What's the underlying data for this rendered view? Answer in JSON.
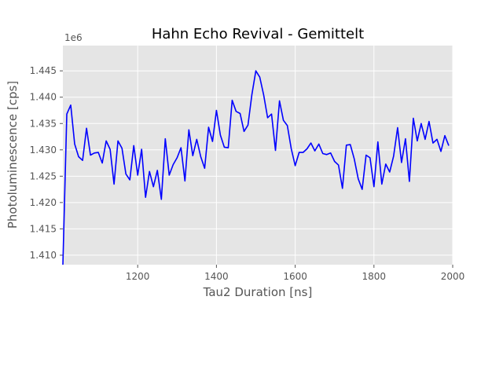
{
  "chart_data": {
    "type": "line",
    "title": "Hahn Echo Revival - Gemittelt",
    "xlabel": "Tau2 Duration [ns]",
    "ylabel": "Photoluminescence [cps]",
    "y_offset_label": "1e6",
    "xlim": [
      1010,
      2000
    ],
    "ylim": [
      1.4082,
      1.4498
    ],
    "x_ticks": [
      1200,
      1400,
      1600,
      1800,
      2000
    ],
    "x_tick_labels": [
      "1200",
      "1400",
      "1600",
      "1800",
      "2000"
    ],
    "y_ticks": [
      1.41,
      1.415,
      1.42,
      1.425,
      1.43,
      1.435,
      1.44,
      1.445
    ],
    "y_tick_labels": [
      "1.410",
      "1.415",
      "1.420",
      "1.425",
      "1.430",
      "1.435",
      "1.440",
      "1.445"
    ],
    "grid": true,
    "line_color": "#0000ff",
    "plot_background": "#e5e5e5",
    "series": [
      {
        "x": [
          1010,
          1020,
          1030,
          1040,
          1050,
          1060,
          1070,
          1080,
          1090,
          1100,
          1110,
          1120,
          1130,
          1140,
          1150,
          1160,
          1170,
          1180,
          1190,
          1200,
          1210,
          1220,
          1230,
          1240,
          1250,
          1260,
          1270,
          1280,
          1290,
          1300,
          1310,
          1320,
          1330,
          1340,
          1350,
          1360,
          1370,
          1380,
          1390,
          1400,
          1410,
          1420,
          1430,
          1440,
          1450,
          1460,
          1470,
          1480,
          1490,
          1500,
          1510,
          1520,
          1530,
          1540,
          1550,
          1560,
          1570,
          1580,
          1590,
          1600,
          1610,
          1620,
          1630,
          1640,
          1650,
          1660,
          1670,
          1680,
          1690,
          1700,
          1710,
          1720,
          1730,
          1740,
          1750,
          1760,
          1770,
          1780,
          1790,
          1800,
          1810,
          1820,
          1830,
          1840,
          1850,
          1860,
          1870,
          1880,
          1890,
          1900,
          1910,
          1920,
          1930,
          1940,
          1950,
          1960,
          1970,
          1980,
          1990
        ],
        "values": [
          1.4082,
          1.4368,
          1.4385,
          1.4311,
          1.4287,
          1.428,
          1.4341,
          1.429,
          1.4294,
          1.4295,
          1.4275,
          1.4317,
          1.4301,
          1.4235,
          1.4317,
          1.4303,
          1.4254,
          1.4243,
          1.4308,
          1.4252,
          1.4301,
          1.421,
          1.4259,
          1.423,
          1.4261,
          1.4206,
          1.4321,
          1.4252,
          1.4272,
          1.4285,
          1.4304,
          1.4241,
          1.4338,
          1.4289,
          1.432,
          1.4287,
          1.4265,
          1.4343,
          1.4316,
          1.4375,
          1.4328,
          1.4305,
          1.4304,
          1.4394,
          1.4373,
          1.4369,
          1.4335,
          1.4347,
          1.4405,
          1.445,
          1.4438,
          1.4404,
          1.4361,
          1.4368,
          1.4299,
          1.4393,
          1.4356,
          1.4346,
          1.4302,
          1.427,
          1.4295,
          1.4295,
          1.4302,
          1.4313,
          1.4298,
          1.4311,
          1.4293,
          1.4291,
          1.4294,
          1.4278,
          1.4271,
          1.4227,
          1.4309,
          1.431,
          1.4283,
          1.4245,
          1.4225,
          1.429,
          1.4285,
          1.423,
          1.4315,
          1.4235,
          1.4273,
          1.4258,
          1.4288,
          1.4342,
          1.4276,
          1.4321,
          1.424,
          1.436,
          1.4317,
          1.435,
          1.432,
          1.4354,
          1.4313,
          1.432,
          1.4297,
          1.4327,
          1.4308
        ]
      }
    ]
  }
}
